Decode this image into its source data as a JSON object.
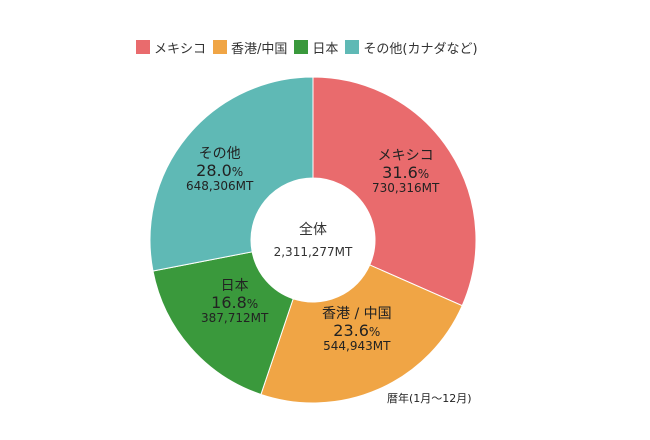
{
  "chart_data": {
    "type": "pie",
    "donut": true,
    "legend_position": "top",
    "center": {
      "title": "全体",
      "total": "2,311,277MT"
    },
    "series": [
      {
        "name": "メキシコ",
        "short_label": "メキシコ",
        "percent": 31.6,
        "pct_num": "31.6",
        "value": 730316,
        "value_label": "730,316MT",
        "color": "#e96b6d"
      },
      {
        "name": "香港/中国",
        "short_label": "香港 / 中国",
        "percent": 23.6,
        "pct_num": "23.6",
        "value": 544943,
        "value_label": "544,943MT",
        "color": "#f0a545"
      },
      {
        "name": "日本",
        "short_label": "日本",
        "percent": 16.8,
        "pct_num": "16.8",
        "value": 387712,
        "value_label": "387,712MT",
        "color": "#3a993c"
      },
      {
        "name": "その他(カナダなど)",
        "short_label": "その他",
        "percent": 28.0,
        "pct_num": "28.0",
        "value": 648306,
        "value_label": "648,306MT",
        "color": "#5fb9b5"
      }
    ],
    "pct_unit": "%",
    "footnote": "暦年(1月〜12月)"
  }
}
